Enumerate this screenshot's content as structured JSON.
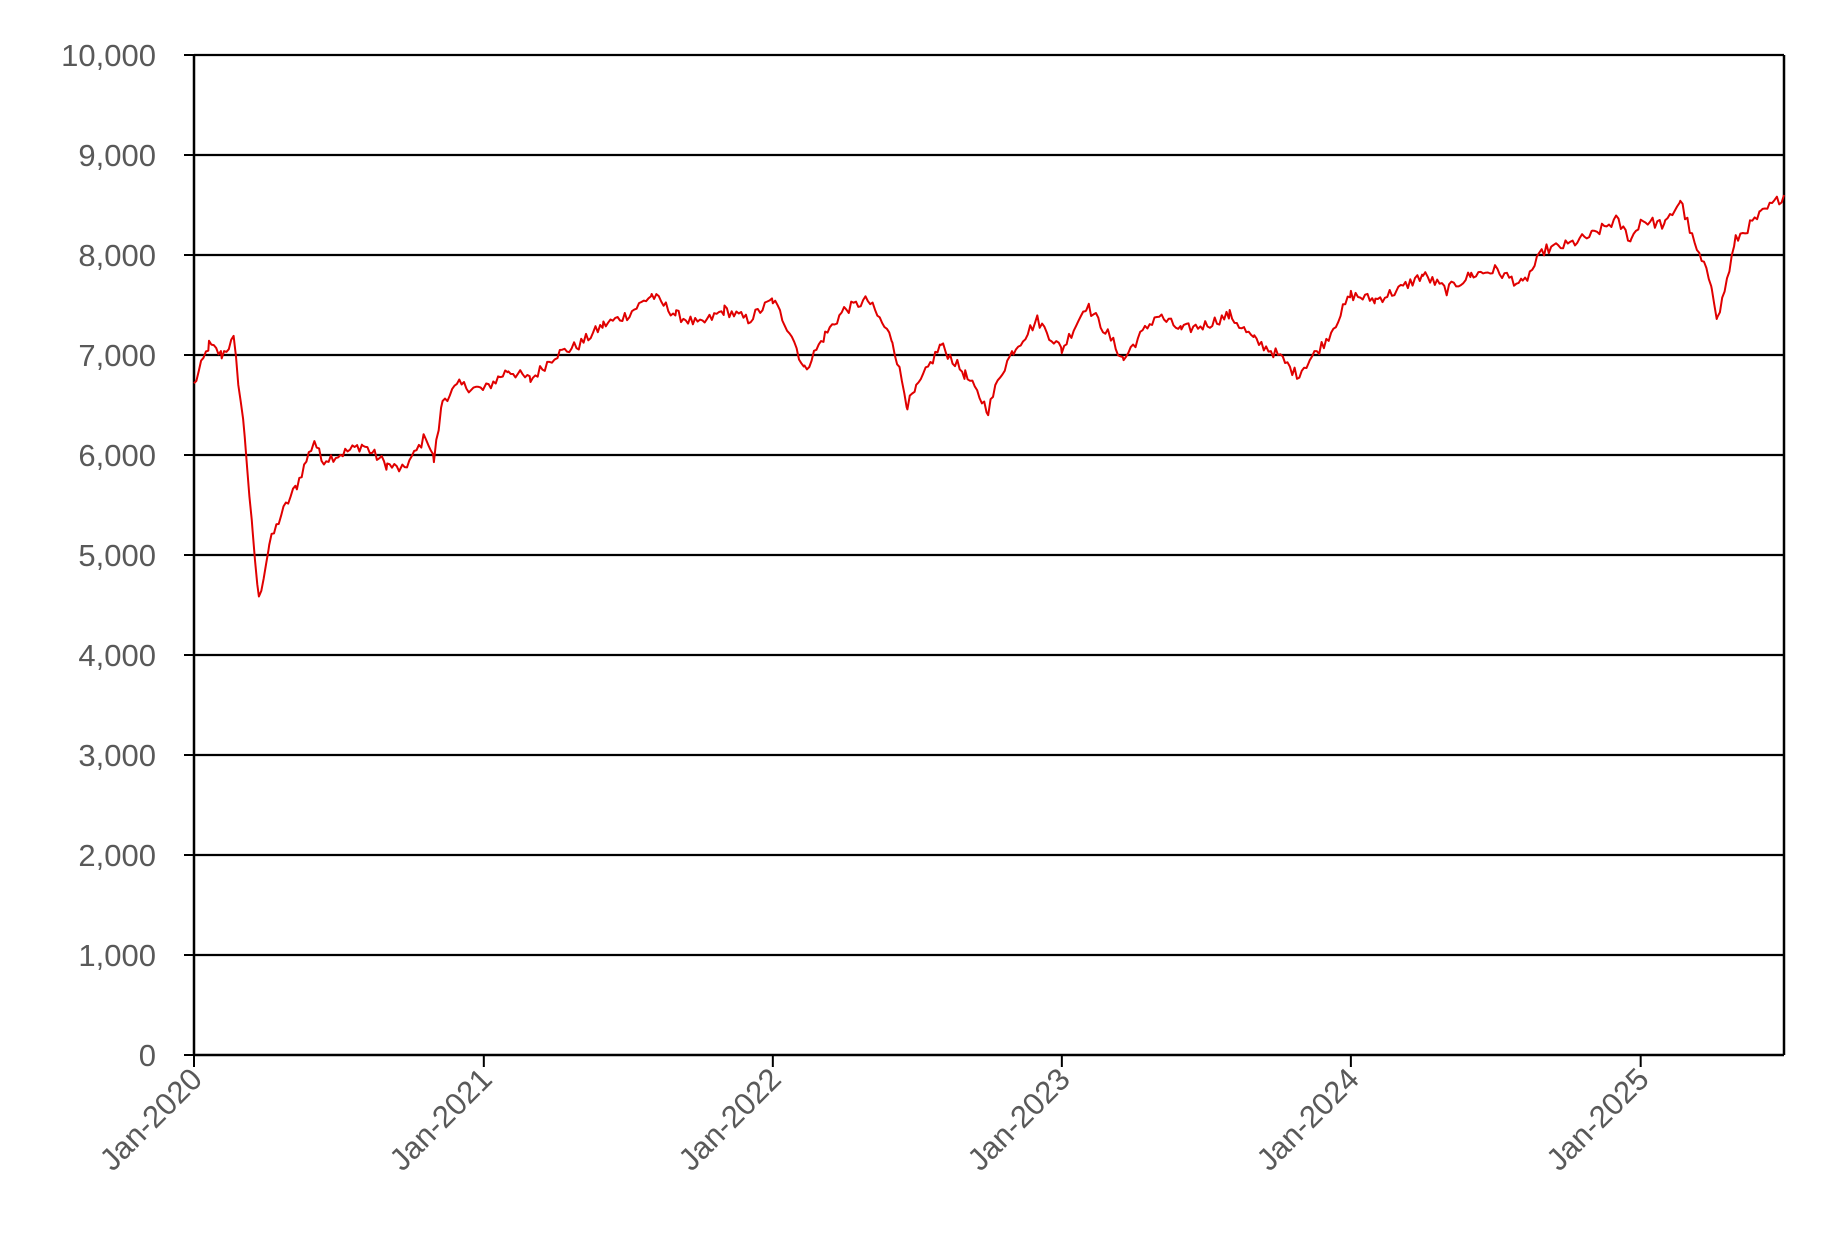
{
  "chart_data": {
    "type": "line",
    "title": "",
    "xlabel": "",
    "ylabel": "",
    "ylim": [
      0,
      10000
    ],
    "xlim": [
      "2020-01",
      "2025-07"
    ],
    "grid": "horizontal",
    "legend": "none",
    "y_ticks": [
      "0",
      "1,000",
      "2,000",
      "3,000",
      "4,000",
      "5,000",
      "6,000",
      "7,000",
      "8,000",
      "9,000",
      "10,000"
    ],
    "x_ticks": [
      "Jan-2020",
      "Jan-2021",
      "Jan-2022",
      "Jan-2023",
      "Jan-2024",
      "Jan-2025"
    ],
    "series": [
      {
        "color": "#e00000",
        "x": [
          "2020-01-01",
          "2020-01-20",
          "2020-02-05",
          "2020-02-20",
          "2020-03-05",
          "2020-03-15",
          "2020-03-23",
          "2020-04-05",
          "2020-04-20",
          "2020-05-10",
          "2020-06-01",
          "2020-06-10",
          "2020-07-01",
          "2020-08-01",
          "2020-09-01",
          "2020-09-20",
          "2020-10-05",
          "2020-10-20",
          "2020-10-30",
          "2020-11-10",
          "2020-12-01",
          "2021-01-01",
          "2021-02-01",
          "2021-03-01",
          "2021-04-01",
          "2021-05-01",
          "2021-06-01",
          "2021-07-01",
          "2021-08-01",
          "2021-09-01",
          "2021-10-01",
          "2021-11-01",
          "2021-12-01",
          "2022-01-01",
          "2022-01-25",
          "2022-02-10",
          "2022-03-08",
          "2022-04-01",
          "2022-05-01",
          "2022-06-01",
          "2022-06-20",
          "2022-07-01",
          "2022-08-01",
          "2022-09-01",
          "2022-09-30",
          "2022-10-15",
          "2022-11-01",
          "2022-12-01",
          "2023-01-01",
          "2023-02-01",
          "2023-03-01",
          "2023-03-20",
          "2023-04-01",
          "2023-05-01",
          "2023-06-01",
          "2023-07-01",
          "2023-08-01",
          "2023-09-01",
          "2023-10-01",
          "2023-10-25",
          "2023-11-10",
          "2023-12-01",
          "2024-01-01",
          "2024-02-01",
          "2024-03-01",
          "2024-04-01",
          "2024-05-01",
          "2024-06-01",
          "2024-07-01",
          "2024-08-05",
          "2024-09-01",
          "2024-10-01",
          "2024-11-01",
          "2024-12-01",
          "2024-12-20",
          "2025-01-01",
          "2025-02-01",
          "2025-02-20",
          "2025-03-10",
          "2025-04-01",
          "2025-04-08",
          "2025-04-20",
          "2025-05-01",
          "2025-06-01",
          "2025-07-01"
        ],
        "values": [
          6700,
          7100,
          7000,
          7150,
          6200,
          5200,
          4550,
          5100,
          5400,
          5700,
          6150,
          5950,
          6000,
          6100,
          5900,
          5850,
          6000,
          6200,
          5950,
          6550,
          6700,
          6650,
          6850,
          6750,
          7000,
          7100,
          7300,
          7400,
          7600,
          7400,
          7300,
          7450,
          7350,
          7550,
          7200,
          6850,
          7200,
          7450,
          7550,
          7150,
          6500,
          6650,
          7100,
          6800,
          6450,
          6800,
          7050,
          7350,
          7050,
          7500,
          7200,
          6950,
          7100,
          7400,
          7250,
          7300,
          7400,
          7150,
          7000,
          6800,
          6950,
          7150,
          7600,
          7550,
          7650,
          7800,
          7650,
          7800,
          7850,
          7700,
          8050,
          8100,
          8200,
          8350,
          8150,
          8350,
          8300,
          8550,
          8100,
          7700,
          7350,
          7750,
          8150,
          8400,
          8600
        ]
      }
    ]
  }
}
